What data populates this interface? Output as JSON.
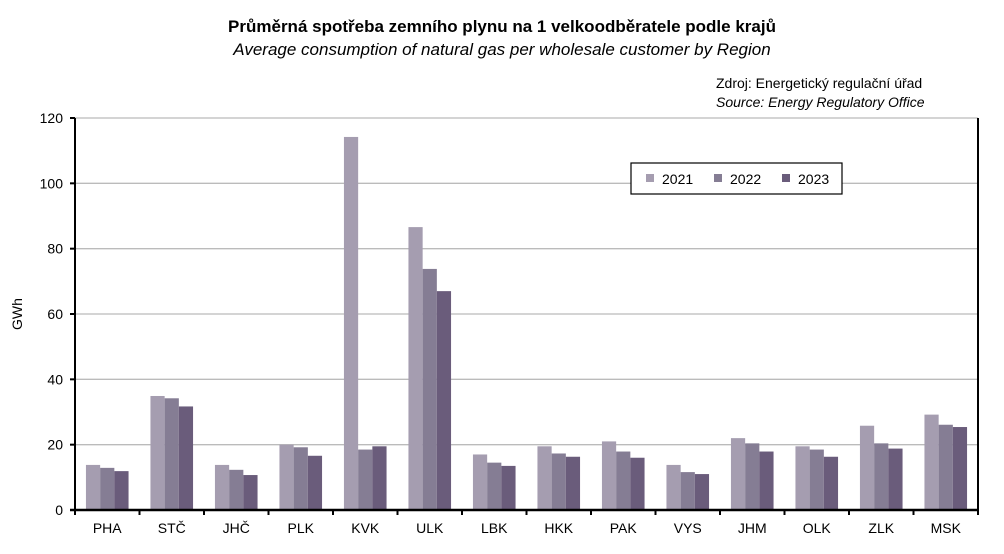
{
  "chart_data": {
    "type": "bar",
    "title": "Průměrná spotřeba zemního plynu na 1 velkoodběratele podle krajů",
    "subtitle": "Average consumption of natural gas per wholesale customer by Region",
    "source_cz": "Zdroj: Energetický regulační úřad",
    "source_en": "Source: Energy Regulatory Office",
    "xlabel": "",
    "ylabel": "GWh",
    "ylim": [
      0,
      120
    ],
    "yticks": [
      0,
      20,
      40,
      60,
      80,
      100,
      120
    ],
    "grid": true,
    "legend_position": "top-right",
    "categories": [
      "PHA",
      "STČ",
      "JHČ",
      "PLK",
      "KVK",
      "ULK",
      "LBK",
      "HKK",
      "PAK",
      "VYS",
      "JHM",
      "OLK",
      "ZLK",
      "MSK"
    ],
    "series": [
      {
        "name": "2021",
        "color": "#a59db0",
        "values": [
          13.8,
          34.9,
          13.8,
          20.0,
          114.2,
          86.6,
          17.0,
          19.5,
          21.0,
          13.8,
          22.0,
          19.5,
          25.8,
          29.2
        ]
      },
      {
        "name": "2022",
        "color": "#857d94",
        "values": [
          12.9,
          34.2,
          12.3,
          19.2,
          18.5,
          73.8,
          14.5,
          17.3,
          17.9,
          11.6,
          20.4,
          18.5,
          20.4,
          26.1
        ]
      },
      {
        "name": "2023",
        "color": "#6a5c7b",
        "values": [
          11.9,
          31.7,
          10.7,
          16.6,
          19.5,
          67.0,
          13.5,
          16.3,
          16.0,
          11.0,
          17.9,
          16.3,
          18.8,
          25.4
        ]
      }
    ]
  }
}
